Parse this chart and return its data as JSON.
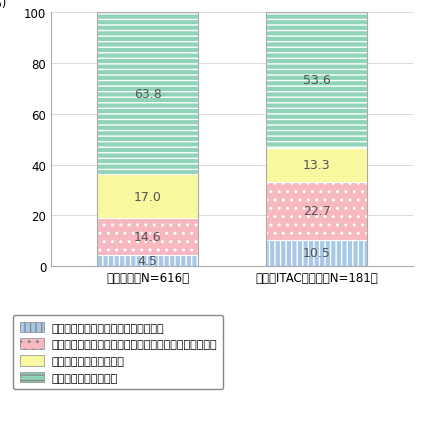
{
  "categories": [
    "日本企業（N=616）",
    "日本（ITAC）企業（N=181）"
  ],
  "series": [
    {
      "label": "具体的な規制内容も含めて知っている",
      "values": [
        4.5,
        10.5
      ],
      "color": "#a8c8e8",
      "hatch": "|||"
    },
    {
      "label": "知っているが、具体的な規制内容までは把握していない",
      "values": [
        14.6,
        22.7
      ],
      "color": "#f8b8c0",
      "hatch": ".."
    },
    {
      "label": "名前は聞いたことがある",
      "values": [
        17.0,
        13.3
      ],
      "color": "#f8f8a0",
      "hatch": ""
    },
    {
      "label": "知らない、わからない",
      "values": [
        63.8,
        53.6
      ],
      "color": "#90d4b8",
      "hatch": "---"
    }
  ],
  "ylim": [
    0,
    100
  ],
  "yticks": [
    0,
    20,
    40,
    60,
    80,
    100
  ],
  "ylabel": "(%)",
  "bar_width": 0.42,
  "text_color": "#555555",
  "fontsize_label": 9,
  "fontsize_tick": 8.5,
  "fontsize_legend": 8,
  "bar_positions": [
    0.3,
    1.0
  ]
}
